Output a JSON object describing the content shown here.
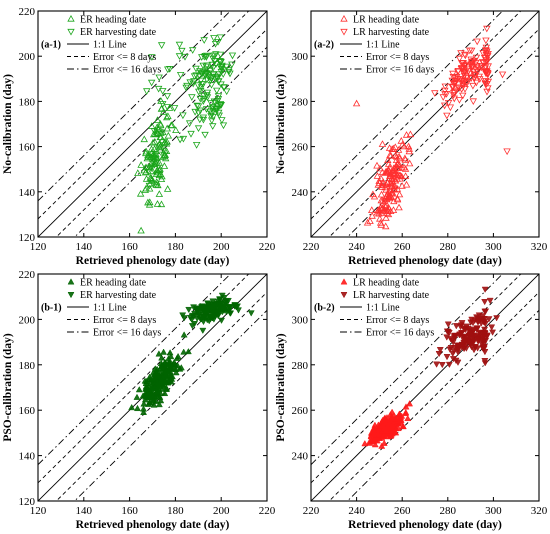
{
  "chart_data": [
    {
      "id": "a-1",
      "type": "scatter",
      "panel_label": "(a-1)",
      "xlabel": "Retrieved phenology date (day)",
      "ylabel": "No-calibration (day)",
      "xlim": [
        120,
        220
      ],
      "ylim": [
        120,
        220
      ],
      "xticks": [
        120,
        140,
        160,
        180,
        200,
        220
      ],
      "yticks": [
        120,
        140,
        160,
        180,
        200,
        220
      ],
      "colors": {
        "heading": "#1aa51a",
        "harvest": "#1aa51a"
      },
      "filled": false,
      "legend": {
        "heading": "ER heading date",
        "harvest": "ER harvesting date",
        "line_1_1": "1:1 Line",
        "error8": "Error <= 8 days",
        "error16": "Error <= 16 days"
      },
      "clusters": [
        {
          "series": "heading",
          "n": 120,
          "cx": 172,
          "cy": 156,
          "sx": 3.5,
          "sy": 9,
          "slope": 1.2
        },
        {
          "series": "harvest",
          "n": 90,
          "cx": 195,
          "cy": 192,
          "sx": 4.5,
          "sy": 6,
          "slope": 0.5
        },
        {
          "series": "harvest",
          "n": 40,
          "cx": 195,
          "cy": 176,
          "sx": 4.5,
          "sy": 6,
          "slope": 0.5
        },
        {
          "series": "harvest",
          "n": 30,
          "cx": 178,
          "cy": 178,
          "sx": 6,
          "sy": 14,
          "slope": 1.0
        }
      ]
    },
    {
      "id": "a-2",
      "type": "scatter",
      "panel_label": "(a-2)",
      "xlabel": "Retrieved phenology date (day)",
      "ylabel": "No-calibration (day)",
      "xlim": [
        220,
        320
      ],
      "ylim": [
        220,
        320
      ],
      "xticks": [
        220,
        240,
        260,
        280,
        300,
        320
      ],
      "yticks": [
        240,
        260,
        280,
        300
      ],
      "colors": {
        "heading": "#ff3030",
        "harvest": "#ff3030"
      },
      "filled": false,
      "legend": {
        "heading": "LR heading date",
        "harvest": "LR harvesting date",
        "line_1_1": "1:1 Line",
        "error8": "Error <= 8 days",
        "error16": "Error <= 16 days"
      },
      "clusters": [
        {
          "series": "heading",
          "n": 160,
          "cx": 255,
          "cy": 244,
          "sx": 3.5,
          "sy": 7,
          "slope": 1.4
        },
        {
          "series": "harvest",
          "n": 110,
          "cx": 287,
          "cy": 292,
          "sx": 5,
          "sy": 5,
          "slope": 0.8
        },
        {
          "series": "harvest",
          "n": 30,
          "cx": 297,
          "cy": 296,
          "sx": 0.4,
          "sy": 7,
          "slope": 0
        }
      ],
      "outliers": [
        {
          "series": "heading",
          "x": 240,
          "y": 279
        },
        {
          "series": "harvest",
          "x": 306,
          "y": 258
        },
        {
          "series": "harvest",
          "x": 304,
          "y": 292
        }
      ]
    },
    {
      "id": "b-1",
      "type": "scatter",
      "panel_label": "(b-1)",
      "xlabel": "Retrieved phenology date (day)",
      "ylabel": "PSO-calibration (day)",
      "xlim": [
        120,
        220
      ],
      "ylim": [
        120,
        220
      ],
      "xticks": [
        120,
        140,
        160,
        180,
        200,
        220
      ],
      "yticks": [
        120,
        140,
        160,
        180,
        200,
        220
      ],
      "colors": {
        "heading": "#006400",
        "harvest": "#006400"
      },
      "filled": true,
      "legend": {
        "heading": "ER heading date",
        "harvest": "ER harvesting date",
        "line_1_1": "1:1 Line",
        "error8": "Error <= 8 days",
        "error16": "Error <= 16 days"
      },
      "clusters": [
        {
          "series": "heading",
          "n": 200,
          "cx": 173,
          "cy": 173,
          "sx": 4.5,
          "sy": 4,
          "slope": 1.0
        },
        {
          "series": "harvest",
          "n": 140,
          "cx": 197,
          "cy": 204,
          "sx": 5,
          "sy": 2.5,
          "slope": 0.3
        }
      ]
    },
    {
      "id": "b-2",
      "type": "scatter",
      "panel_label": "(b-2)",
      "xlabel": "Retrieved phenology date (day)",
      "ylabel": "PSO-calibration (day)",
      "xlim": [
        220,
        320
      ],
      "ylim": [
        220,
        320
      ],
      "xticks": [
        220,
        240,
        260,
        280,
        300,
        320
      ],
      "yticks": [
        240,
        260,
        280,
        300
      ],
      "colors": {
        "heading": "#ff1a1a",
        "harvest": "#a01010"
      },
      "filled": true,
      "legend": {
        "heading": "LR heading date",
        "harvest": "LR harvesting date",
        "line_1_1": "1:1 Line",
        "error8": "Error <= 8 days",
        "error16": "Error <= 16 days"
      },
      "clusters": [
        {
          "series": "heading",
          "n": 200,
          "cx": 253,
          "cy": 252,
          "sx": 3.5,
          "sy": 2.5,
          "slope": 0.6
        },
        {
          "series": "harvest",
          "n": 130,
          "cx": 288,
          "cy": 292,
          "sx": 5,
          "sy": 4,
          "slope": 0.5
        },
        {
          "series": "harvest",
          "n": 25,
          "cx": 296,
          "cy": 296,
          "sx": 0.4,
          "sy": 6,
          "slope": 0
        }
      ]
    }
  ]
}
